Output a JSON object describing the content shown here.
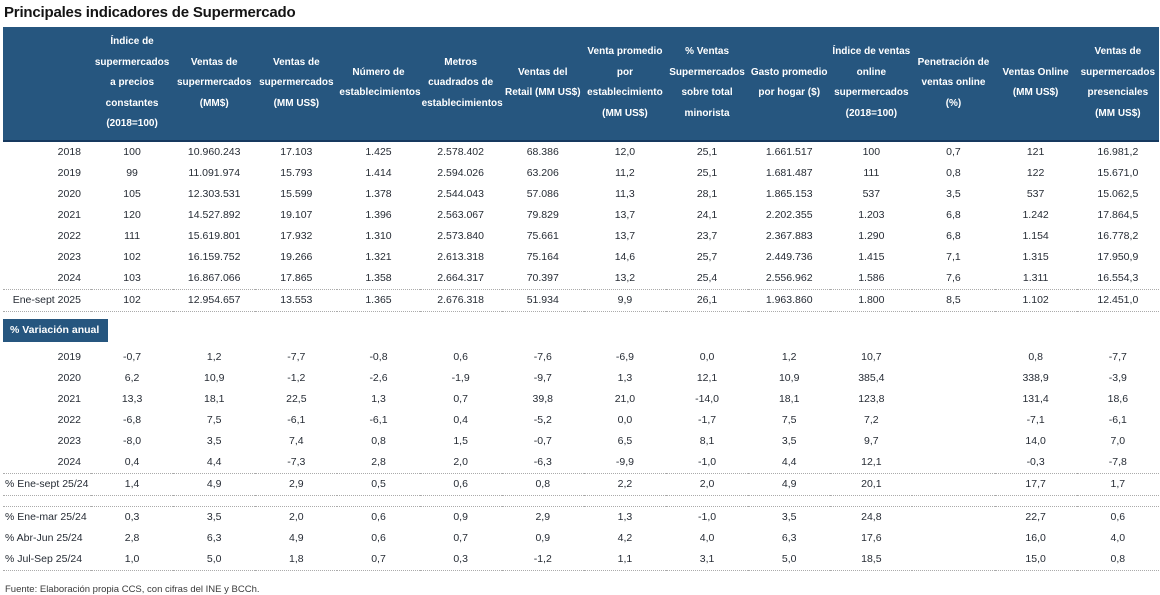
{
  "title": "Principales indicadores de Supermercado",
  "footer": "Fuente: Elaboración propia CCS, con cifras del INE y BCCh.",
  "colors": {
    "header_bg": "#26567F",
    "header_border": "#16395F",
    "body_text": "#262c35",
    "separator": "#ababab"
  },
  "table": {
    "columns": [
      "",
      "Índice de supermercados a precios constantes (2018=100)",
      "Ventas de supermercados (MM$)",
      "Ventas de supermercados (MM US$)",
      "Número de establecimientos",
      "Metros cuadrados de establecimientos",
      "Ventas del Retail (MM US$)",
      "Venta promedio por establecimiento (MM US$)",
      "% Ventas Supermercados sobre total minorista",
      "Gasto promedio por hogar ($)",
      "Índice de ventas online supermercados (2018=100)",
      "Penetración de ventas online (%)",
      "Ventas Online (MM US$)",
      "Ventas de supermercados presenciales (MM US$)"
    ],
    "levels_rows": [
      {
        "label": "2018",
        "values": [
          "100",
          "10.960.243",
          "17.103",
          "1.425",
          "2.578.402",
          "68.386",
          "12,0",
          "25,1",
          "1.661.517",
          "100",
          "0,7",
          "121",
          "16.981,2"
        ]
      },
      {
        "label": "2019",
        "values": [
          "99",
          "11.091.974",
          "15.793",
          "1.414",
          "2.594.026",
          "63.206",
          "11,2",
          "25,1",
          "1.681.487",
          "111",
          "0,8",
          "122",
          "15.671,0"
        ]
      },
      {
        "label": "2020",
        "values": [
          "105",
          "12.303.531",
          "15.599",
          "1.378",
          "2.544.043",
          "57.086",
          "11,3",
          "28,1",
          "1.865.153",
          "537",
          "3,5",
          "537",
          "15.062,5"
        ]
      },
      {
        "label": "2021",
        "values": [
          "120",
          "14.527.892",
          "19.107",
          "1.396",
          "2.563.067",
          "79.829",
          "13,7",
          "24,1",
          "2.202.355",
          "1.203",
          "6,8",
          "1.242",
          "17.864,5"
        ]
      },
      {
        "label": "2022",
        "values": [
          "111",
          "15.619.801",
          "17.932",
          "1.310",
          "2.573.840",
          "75.661",
          "13,7",
          "23,7",
          "2.367.883",
          "1.290",
          "6,8",
          "1.154",
          "16.778,2"
        ]
      },
      {
        "label": "2023",
        "values": [
          "102",
          "16.159.752",
          "19.266",
          "1.321",
          "2.613.318",
          "75.164",
          "14,6",
          "25,7",
          "2.449.736",
          "1.415",
          "7,1",
          "1.315",
          "17.950,9"
        ]
      },
      {
        "label": "2024",
        "values": [
          "103",
          "16.867.066",
          "17.865",
          "1.358",
          "2.664.317",
          "70.397",
          "13,2",
          "25,4",
          "2.556.962",
          "1.586",
          "7,6",
          "1.311",
          "16.554,3"
        ]
      },
      {
        "label": "Ene-sept 2025",
        "values": [
          "102",
          "12.954.657",
          "13.553",
          "1.365",
          "2.676.318",
          "51.934",
          "9,9",
          "26,1",
          "1.963.860",
          "1.800",
          "8,5",
          "1.102",
          "12.451,0"
        ]
      }
    ],
    "variation_section_label": "% Variación anual",
    "variation_rows": [
      {
        "label": "2019",
        "values": [
          "-0,7",
          "1,2",
          "-7,7",
          "-0,8",
          "0,6",
          "-7,6",
          "-6,9",
          "0,0",
          "1,2",
          "10,7",
          "",
          "0,8",
          "-7,7"
        ]
      },
      {
        "label": "2020",
        "values": [
          "6,2",
          "10,9",
          "-1,2",
          "-2,6",
          "-1,9",
          "-9,7",
          "1,3",
          "12,1",
          "10,9",
          "385,4",
          "",
          "338,9",
          "-3,9"
        ]
      },
      {
        "label": "2021",
        "values": [
          "13,3",
          "18,1",
          "22,5",
          "1,3",
          "0,7",
          "39,8",
          "21,0",
          "-14,0",
          "18,1",
          "123,8",
          "",
          "131,4",
          "18,6"
        ]
      },
      {
        "label": "2022",
        "values": [
          "-6,8",
          "7,5",
          "-6,1",
          "-6,1",
          "0,4",
          "-5,2",
          "0,0",
          "-1,7",
          "7,5",
          "7,2",
          "",
          "-7,1",
          "-6,1"
        ]
      },
      {
        "label": "2023",
        "values": [
          "-8,0",
          "3,5",
          "7,4",
          "0,8",
          "1,5",
          "-0,7",
          "6,5",
          "8,1",
          "3,5",
          "9,7",
          "",
          "14,0",
          "7,0"
        ]
      },
      {
        "label": "2024",
        "values": [
          "0,4",
          "4,4",
          "-7,3",
          "2,8",
          "2,0",
          "-6,3",
          "-9,9",
          "-1,0",
          "4,4",
          "12,1",
          "",
          "-0,3",
          "-7,8"
        ]
      },
      {
        "label": "% Ene-sept 25/24",
        "values": [
          "1,4",
          "4,9",
          "2,9",
          "0,5",
          "0,6",
          "0,8",
          "2,2",
          "2,0",
          "4,9",
          "20,1",
          "",
          "17,7",
          "1,7"
        ]
      }
    ],
    "quarterly_rows": [
      {
        "label": "% Ene-mar 25/24",
        "values": [
          "0,3",
          "3,5",
          "2,0",
          "0,6",
          "0,9",
          "2,9",
          "1,3",
          "-1,0",
          "3,5",
          "24,8",
          "",
          "22,7",
          "0,6"
        ]
      },
      {
        "label": "% Abr-Jun 25/24",
        "values": [
          "2,8",
          "6,3",
          "4,9",
          "0,6",
          "0,7",
          "0,9",
          "4,2",
          "4,0",
          "6,3",
          "17,6",
          "",
          "16,0",
          "4,0"
        ]
      },
      {
        "label": "% Jul-Sep 25/24",
        "values": [
          "1,0",
          "5,0",
          "1,8",
          "0,7",
          "0,3",
          "-1,2",
          "1,1",
          "3,1",
          "5,0",
          "18,5",
          "",
          "15,0",
          "0,8"
        ]
      }
    ]
  }
}
